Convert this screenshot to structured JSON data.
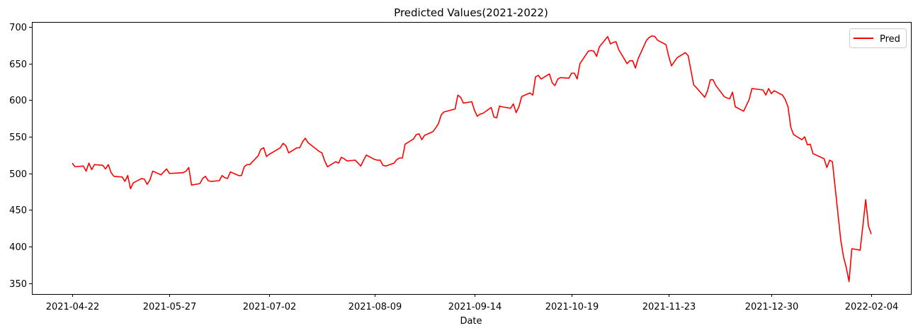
{
  "chart_data": {
    "type": "line",
    "title": "Predicted Values(2021-2022)",
    "xlabel": "Date",
    "ylabel": "",
    "x_ticks": [
      "2021-04-22",
      "2021-05-27",
      "2021-07-02",
      "2021-08-09",
      "2021-09-14",
      "2021-10-19",
      "2021-11-23",
      "2021-12-30",
      "2022-02-04"
    ],
    "y_ticks": [
      350,
      400,
      450,
      500,
      550,
      600,
      650,
      700
    ],
    "ylim": [
      335,
      707
    ],
    "grid": false,
    "legend_position": "top-right",
    "series": [
      {
        "name": "Pred",
        "color": "#ff0000",
        "points": [
          [
            "2021-04-22",
            514
          ],
          [
            "2021-04-23",
            509
          ],
          [
            "2021-04-26",
            510
          ],
          [
            "2021-04-27",
            503
          ],
          [
            "2021-04-28",
            514
          ],
          [
            "2021-04-29",
            505
          ],
          [
            "2021-04-30",
            512
          ],
          [
            "2021-05-03",
            511
          ],
          [
            "2021-05-04",
            506
          ],
          [
            "2021-05-05",
            512
          ],
          [
            "2021-05-06",
            501
          ],
          [
            "2021-05-07",
            496
          ],
          [
            "2021-05-10",
            495
          ],
          [
            "2021-05-11",
            489
          ],
          [
            "2021-05-12",
            497
          ],
          [
            "2021-05-13",
            479
          ],
          [
            "2021-05-14",
            487
          ],
          [
            "2021-05-17",
            493
          ],
          [
            "2021-05-18",
            492
          ],
          [
            "2021-05-19",
            485
          ],
          [
            "2021-05-20",
            491
          ],
          [
            "2021-05-21",
            503
          ],
          [
            "2021-05-24",
            498
          ],
          [
            "2021-05-25",
            502
          ],
          [
            "2021-05-26",
            506
          ],
          [
            "2021-05-27",
            500
          ],
          [
            "2021-05-28",
            500
          ],
          [
            "2021-06-01",
            501
          ],
          [
            "2021-06-02",
            503
          ],
          [
            "2021-06-03",
            508
          ],
          [
            "2021-06-04",
            484
          ],
          [
            "2021-06-07",
            486
          ],
          [
            "2021-06-08",
            493
          ],
          [
            "2021-06-09",
            496
          ],
          [
            "2021-06-10",
            490
          ],
          [
            "2021-06-11",
            489
          ],
          [
            "2021-06-14",
            490
          ],
          [
            "2021-06-15",
            497
          ],
          [
            "2021-06-16",
            494
          ],
          [
            "2021-06-17",
            493
          ],
          [
            "2021-06-18",
            502
          ],
          [
            "2021-06-21",
            497
          ],
          [
            "2021-06-22",
            497
          ],
          [
            "2021-06-23",
            509
          ],
          [
            "2021-06-24",
            512
          ],
          [
            "2021-06-25",
            512
          ],
          [
            "2021-06-28",
            524
          ],
          [
            "2021-06-29",
            533
          ],
          [
            "2021-06-30",
            535
          ],
          [
            "2021-07-01",
            523
          ],
          [
            "2021-07-02",
            526
          ],
          [
            "2021-07-06",
            535
          ],
          [
            "2021-07-07",
            541
          ],
          [
            "2021-07-08",
            538
          ],
          [
            "2021-07-09",
            528
          ],
          [
            "2021-07-12",
            535
          ],
          [
            "2021-07-13",
            535
          ],
          [
            "2021-07-14",
            543
          ],
          [
            "2021-07-15",
            548
          ],
          [
            "2021-07-16",
            542
          ],
          [
            "2021-07-19",
            533
          ],
          [
            "2021-07-20",
            530
          ],
          [
            "2021-07-21",
            528
          ],
          [
            "2021-07-22",
            517
          ],
          [
            "2021-07-23",
            509
          ],
          [
            "2021-07-26",
            516
          ],
          [
            "2021-07-27",
            514
          ],
          [
            "2021-07-28",
            522
          ],
          [
            "2021-07-29",
            520
          ],
          [
            "2021-07-30",
            517
          ],
          [
            "2021-08-02",
            518
          ],
          [
            "2021-08-03",
            514
          ],
          [
            "2021-08-04",
            510
          ],
          [
            "2021-08-05",
            518
          ],
          [
            "2021-08-06",
            525
          ],
          [
            "2021-08-09",
            519
          ],
          [
            "2021-08-10",
            518
          ],
          [
            "2021-08-11",
            518
          ],
          [
            "2021-08-12",
            511
          ],
          [
            "2021-08-13",
            510
          ],
          [
            "2021-08-16",
            514
          ],
          [
            "2021-08-17",
            519
          ],
          [
            "2021-08-18",
            521
          ],
          [
            "2021-08-19",
            521
          ],
          [
            "2021-08-20",
            540
          ],
          [
            "2021-08-23",
            547
          ],
          [
            "2021-08-24",
            553
          ],
          [
            "2021-08-25",
            554
          ],
          [
            "2021-08-26",
            546
          ],
          [
            "2021-08-27",
            552
          ],
          [
            "2021-08-30",
            557
          ],
          [
            "2021-08-31",
            562
          ],
          [
            "2021-09-01",
            568
          ],
          [
            "2021-09-02",
            580
          ],
          [
            "2021-09-03",
            584
          ],
          [
            "2021-09-07",
            588
          ],
          [
            "2021-09-08",
            607
          ],
          [
            "2021-09-09",
            604
          ],
          [
            "2021-09-10",
            596
          ],
          [
            "2021-09-13",
            598
          ],
          [
            "2021-09-14",
            586
          ],
          [
            "2021-09-15",
            578
          ],
          [
            "2021-09-16",
            581
          ],
          [
            "2021-09-17",
            582
          ],
          [
            "2021-09-20",
            590
          ],
          [
            "2021-09-21",
            577
          ],
          [
            "2021-09-22",
            576
          ],
          [
            "2021-09-23",
            592
          ],
          [
            "2021-09-24",
            591
          ],
          [
            "2021-09-27",
            589
          ],
          [
            "2021-09-28",
            595
          ],
          [
            "2021-09-29",
            583
          ],
          [
            "2021-09-30",
            591
          ],
          [
            "2021-10-01",
            605
          ],
          [
            "2021-10-04",
            610
          ],
          [
            "2021-10-05",
            607
          ],
          [
            "2021-10-06",
            632
          ],
          [
            "2021-10-07",
            634
          ],
          [
            "2021-10-08",
            629
          ],
          [
            "2021-10-11",
            636
          ],
          [
            "2021-10-12",
            624
          ],
          [
            "2021-10-13",
            620
          ],
          [
            "2021-10-14",
            629
          ],
          [
            "2021-10-15",
            631
          ],
          [
            "2021-10-18",
            630
          ],
          [
            "2021-10-19",
            637
          ],
          [
            "2021-10-20",
            637
          ],
          [
            "2021-10-21",
            629
          ],
          [
            "2021-10-22",
            650
          ],
          [
            "2021-10-25",
            667
          ],
          [
            "2021-10-26",
            668
          ],
          [
            "2021-10-27",
            667
          ],
          [
            "2021-10-28",
            660
          ],
          [
            "2021-10-29",
            673
          ],
          [
            "2021-11-01",
            687
          ],
          [
            "2021-11-02",
            677
          ],
          [
            "2021-11-03",
            679
          ],
          [
            "2021-11-04",
            680
          ],
          [
            "2021-11-05",
            669
          ],
          [
            "2021-11-08",
            650
          ],
          [
            "2021-11-09",
            654
          ],
          [
            "2021-11-10",
            654
          ],
          [
            "2021-11-11",
            644
          ],
          [
            "2021-11-12",
            657
          ],
          [
            "2021-11-15",
            682
          ],
          [
            "2021-11-16",
            686
          ],
          [
            "2021-11-17",
            688
          ],
          [
            "2021-11-18",
            687
          ],
          [
            "2021-11-19",
            682
          ],
          [
            "2021-11-22",
            676
          ],
          [
            "2021-11-23",
            660
          ],
          [
            "2021-11-24",
            647
          ],
          [
            "2021-11-26",
            658
          ],
          [
            "2021-11-29",
            665
          ],
          [
            "2021-11-30",
            661
          ],
          [
            "2021-12-01",
            641
          ],
          [
            "2021-12-02",
            621
          ],
          [
            "2021-12-03",
            617
          ],
          [
            "2021-12-06",
            604
          ],
          [
            "2021-12-07",
            613
          ],
          [
            "2021-12-08",
            628
          ],
          [
            "2021-12-09",
            628
          ],
          [
            "2021-12-10",
            620
          ],
          [
            "2021-12-13",
            605
          ],
          [
            "2021-12-14",
            603
          ],
          [
            "2021-12-15",
            602
          ],
          [
            "2021-12-16",
            611
          ],
          [
            "2021-12-17",
            591
          ],
          [
            "2021-12-20",
            585
          ],
          [
            "2021-12-21",
            593
          ],
          [
            "2021-12-22",
            601
          ],
          [
            "2021-12-23",
            616
          ],
          [
            "2021-12-27",
            614
          ],
          [
            "2021-12-28",
            607
          ],
          [
            "2021-12-29",
            616
          ],
          [
            "2021-12-30",
            609
          ],
          [
            "2021-12-31",
            613
          ],
          [
            "2022-01-03",
            607
          ],
          [
            "2022-01-04",
            601
          ],
          [
            "2022-01-05",
            591
          ],
          [
            "2022-01-06",
            563
          ],
          [
            "2022-01-07",
            553
          ],
          [
            "2022-01-10",
            546
          ],
          [
            "2022-01-11",
            550
          ],
          [
            "2022-01-12",
            539
          ],
          [
            "2022-01-13",
            540
          ],
          [
            "2022-01-14",
            527
          ],
          [
            "2022-01-18",
            520
          ],
          [
            "2022-01-19",
            508
          ],
          [
            "2022-01-20",
            518
          ],
          [
            "2022-01-21",
            516
          ],
          [
            "2022-01-24",
            409
          ],
          [
            "2022-01-25",
            386
          ],
          [
            "2022-01-26",
            371
          ],
          [
            "2022-01-27",
            352
          ],
          [
            "2022-01-28",
            397
          ],
          [
            "2022-01-31",
            395
          ],
          [
            "2022-02-01",
            429
          ],
          [
            "2022-02-02",
            464
          ],
          [
            "2022-02-03",
            428
          ],
          [
            "2022-02-04",
            417
          ]
        ]
      }
    ]
  }
}
